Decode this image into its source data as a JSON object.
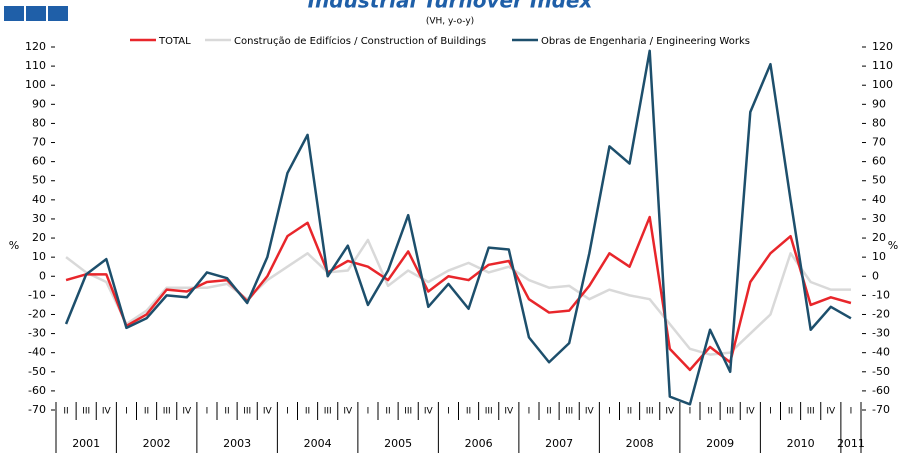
{
  "chart_data": {
    "type": "line",
    "title": "Industrial Turnover Index",
    "subtitle": "(VH, y-o-y)",
    "y_label": "%",
    "y2_label": "%",
    "ylim": [
      -70,
      120
    ],
    "yticks": [
      -70,
      -60,
      -50,
      -40,
      -30,
      -20,
      -10,
      0,
      10,
      20,
      30,
      40,
      50,
      60,
      70,
      80,
      90,
      100,
      110,
      120
    ],
    "y2lim": [
      -70,
      120
    ],
    "y2ticks": [
      -70,
      -60,
      -50,
      -40,
      -30,
      -20,
      -10,
      0,
      10,
      20,
      30,
      40,
      50,
      60,
      70,
      80,
      90,
      100,
      110,
      120
    ],
    "grid": false,
    "year_groups": [
      {
        "label": "2001",
        "quarters": [
          "II",
          "III",
          "IV"
        ]
      },
      {
        "label": "2002",
        "quarters": [
          "I",
          "II",
          "III",
          "IV"
        ]
      },
      {
        "label": "2003",
        "quarters": [
          "I",
          "II",
          "III",
          "IV"
        ]
      },
      {
        "label": "2004",
        "quarters": [
          "I",
          "II",
          "III",
          "IV"
        ]
      },
      {
        "label": "2005",
        "quarters": [
          "I",
          "II",
          "III",
          "IV"
        ]
      },
      {
        "label": "2006",
        "quarters": [
          "I",
          "II",
          "III",
          "IV"
        ]
      },
      {
        "label": "2007",
        "quarters": [
          "I",
          "II",
          "III",
          "IV"
        ]
      },
      {
        "label": "2008",
        "quarters": [
          "I",
          "II",
          "III",
          "IV"
        ]
      },
      {
        "label": "2009",
        "quarters": [
          "I",
          "II",
          "III",
          "IV"
        ]
      },
      {
        "label": "2010",
        "quarters": [
          "I",
          "II",
          "III",
          "IV"
        ]
      },
      {
        "label": "2011",
        "quarters": [
          "I"
        ]
      }
    ],
    "series": [
      {
        "name": "TOTAL",
        "color": "#e8262b",
        "values": [
          -2,
          1,
          1,
          -26,
          -20,
          -7,
          -8,
          -3,
          -2,
          -13,
          0,
          21,
          28,
          2,
          8,
          5,
          -2,
          13,
          -8,
          0,
          -2,
          6,
          8,
          -12,
          -19,
          -18,
          -5,
          12,
          5,
          31,
          -38,
          -49,
          -37,
          -45,
          -3,
          12,
          21,
          -15,
          -11,
          -14
        ]
      },
      {
        "name": "Construção de Edifícios / Construction of Buildings",
        "color": "#d9d9d9",
        "values": [
          10,
          2,
          -3,
          -25,
          -18,
          -6,
          -6,
          -6,
          -4,
          -12,
          -2,
          5,
          12,
          2,
          3,
          19,
          -5,
          3,
          -3,
          3,
          7,
          2,
          5,
          -2,
          -6,
          -5,
          -12,
          -7,
          -10,
          -12,
          -25,
          -38,
          -41,
          -40,
          -30,
          -20,
          12,
          -3,
          -7,
          -7
        ]
      },
      {
        "name": "Obras de Engenharia / Engineering Works",
        "color": "#1d4f6c",
        "values": [
          -25,
          1,
          9,
          -27,
          -22,
          -10,
          -11,
          2,
          -1,
          -14,
          10,
          54,
          74,
          0,
          16,
          -15,
          3,
          32,
          -16,
          -4,
          -17,
          15,
          14,
          -32,
          -45,
          -35,
          12,
          68,
          59,
          118,
          -63,
          -67,
          -28,
          -50,
          86,
          111,
          40,
          -28,
          -16,
          -22
        ]
      }
    ]
  }
}
